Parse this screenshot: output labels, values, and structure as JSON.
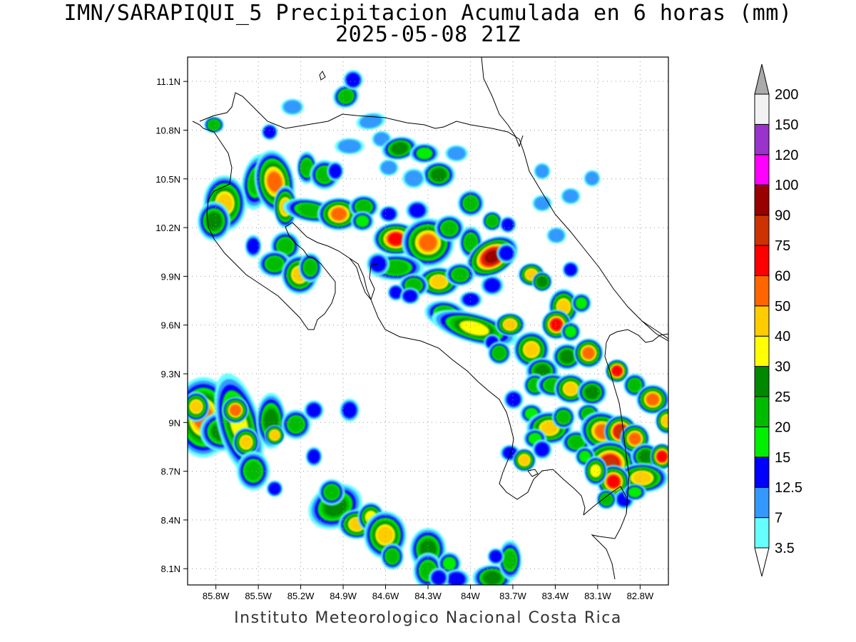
{
  "title": {
    "line1": "IMN/SARAPIQUI_5 Precipitacion Acumulada en 6 horas (mm)",
    "line2": "2025-05-08 21Z"
  },
  "footer": "Instituto Meteorologico Nacional Costa Rica",
  "map": {
    "lon_range": [
      -86.0,
      -82.6
    ],
    "lat_range": [
      8.0,
      11.25
    ],
    "lat_ticks": [
      {
        "value": 11.1,
        "label": "11.1N"
      },
      {
        "value": 10.8,
        "label": "10.8N"
      },
      {
        "value": 10.5,
        "label": "10.5N"
      },
      {
        "value": 10.2,
        "label": "10.2N"
      },
      {
        "value": 9.9,
        "label": "9.9N"
      },
      {
        "value": 9.6,
        "label": "9.6N"
      },
      {
        "value": 9.3,
        "label": "9.3N"
      },
      {
        "value": 9.0,
        "label": "9N"
      },
      {
        "value": 8.7,
        "label": "8.7N"
      },
      {
        "value": 8.4,
        "label": "8.4N"
      },
      {
        "value": 8.1,
        "label": "8.1N"
      }
    ],
    "lon_ticks": [
      {
        "value": -85.8,
        "label": "85.8W"
      },
      {
        "value": -85.5,
        "label": "85.5W"
      },
      {
        "value": -85.2,
        "label": "85.2W"
      },
      {
        "value": -84.9,
        "label": "84.9W"
      },
      {
        "value": -84.6,
        "label": "84.6W"
      },
      {
        "value": -84.3,
        "label": "84.3W"
      },
      {
        "value": -84.0,
        "label": "84W"
      },
      {
        "value": -83.7,
        "label": "83.7W"
      },
      {
        "value": -83.4,
        "label": "83.4W"
      },
      {
        "value": -83.1,
        "label": "83.1W"
      },
      {
        "value": -82.8,
        "label": "82.8W"
      }
    ],
    "grid": "dotted"
  },
  "colorbar": {
    "levels": [
      {
        "label": "3.5",
        "color": "#66ffff"
      },
      {
        "label": "7",
        "color": "#3399ff"
      },
      {
        "label": "12.5",
        "color": "#0000ff"
      },
      {
        "label": "15",
        "color": "#00ee00"
      },
      {
        "label": "20",
        "color": "#00bb00"
      },
      {
        "label": "25",
        "color": "#008800"
      },
      {
        "label": "30",
        "color": "#ffff00"
      },
      {
        "label": "40",
        "color": "#ffcc00"
      },
      {
        "label": "50",
        "color": "#ff6600"
      },
      {
        "label": "60",
        "color": "#ff0000"
      },
      {
        "label": "75",
        "color": "#cc3300"
      },
      {
        "label": "90",
        "color": "#990000"
      },
      {
        "label": "100",
        "color": "#ff00ff"
      },
      {
        "label": "120",
        "color": "#9933cc"
      },
      {
        "label": "150",
        "color": "#f2f2f2"
      },
      {
        "label": "200",
        "color": "#aaaaaa"
      }
    ]
  }
}
